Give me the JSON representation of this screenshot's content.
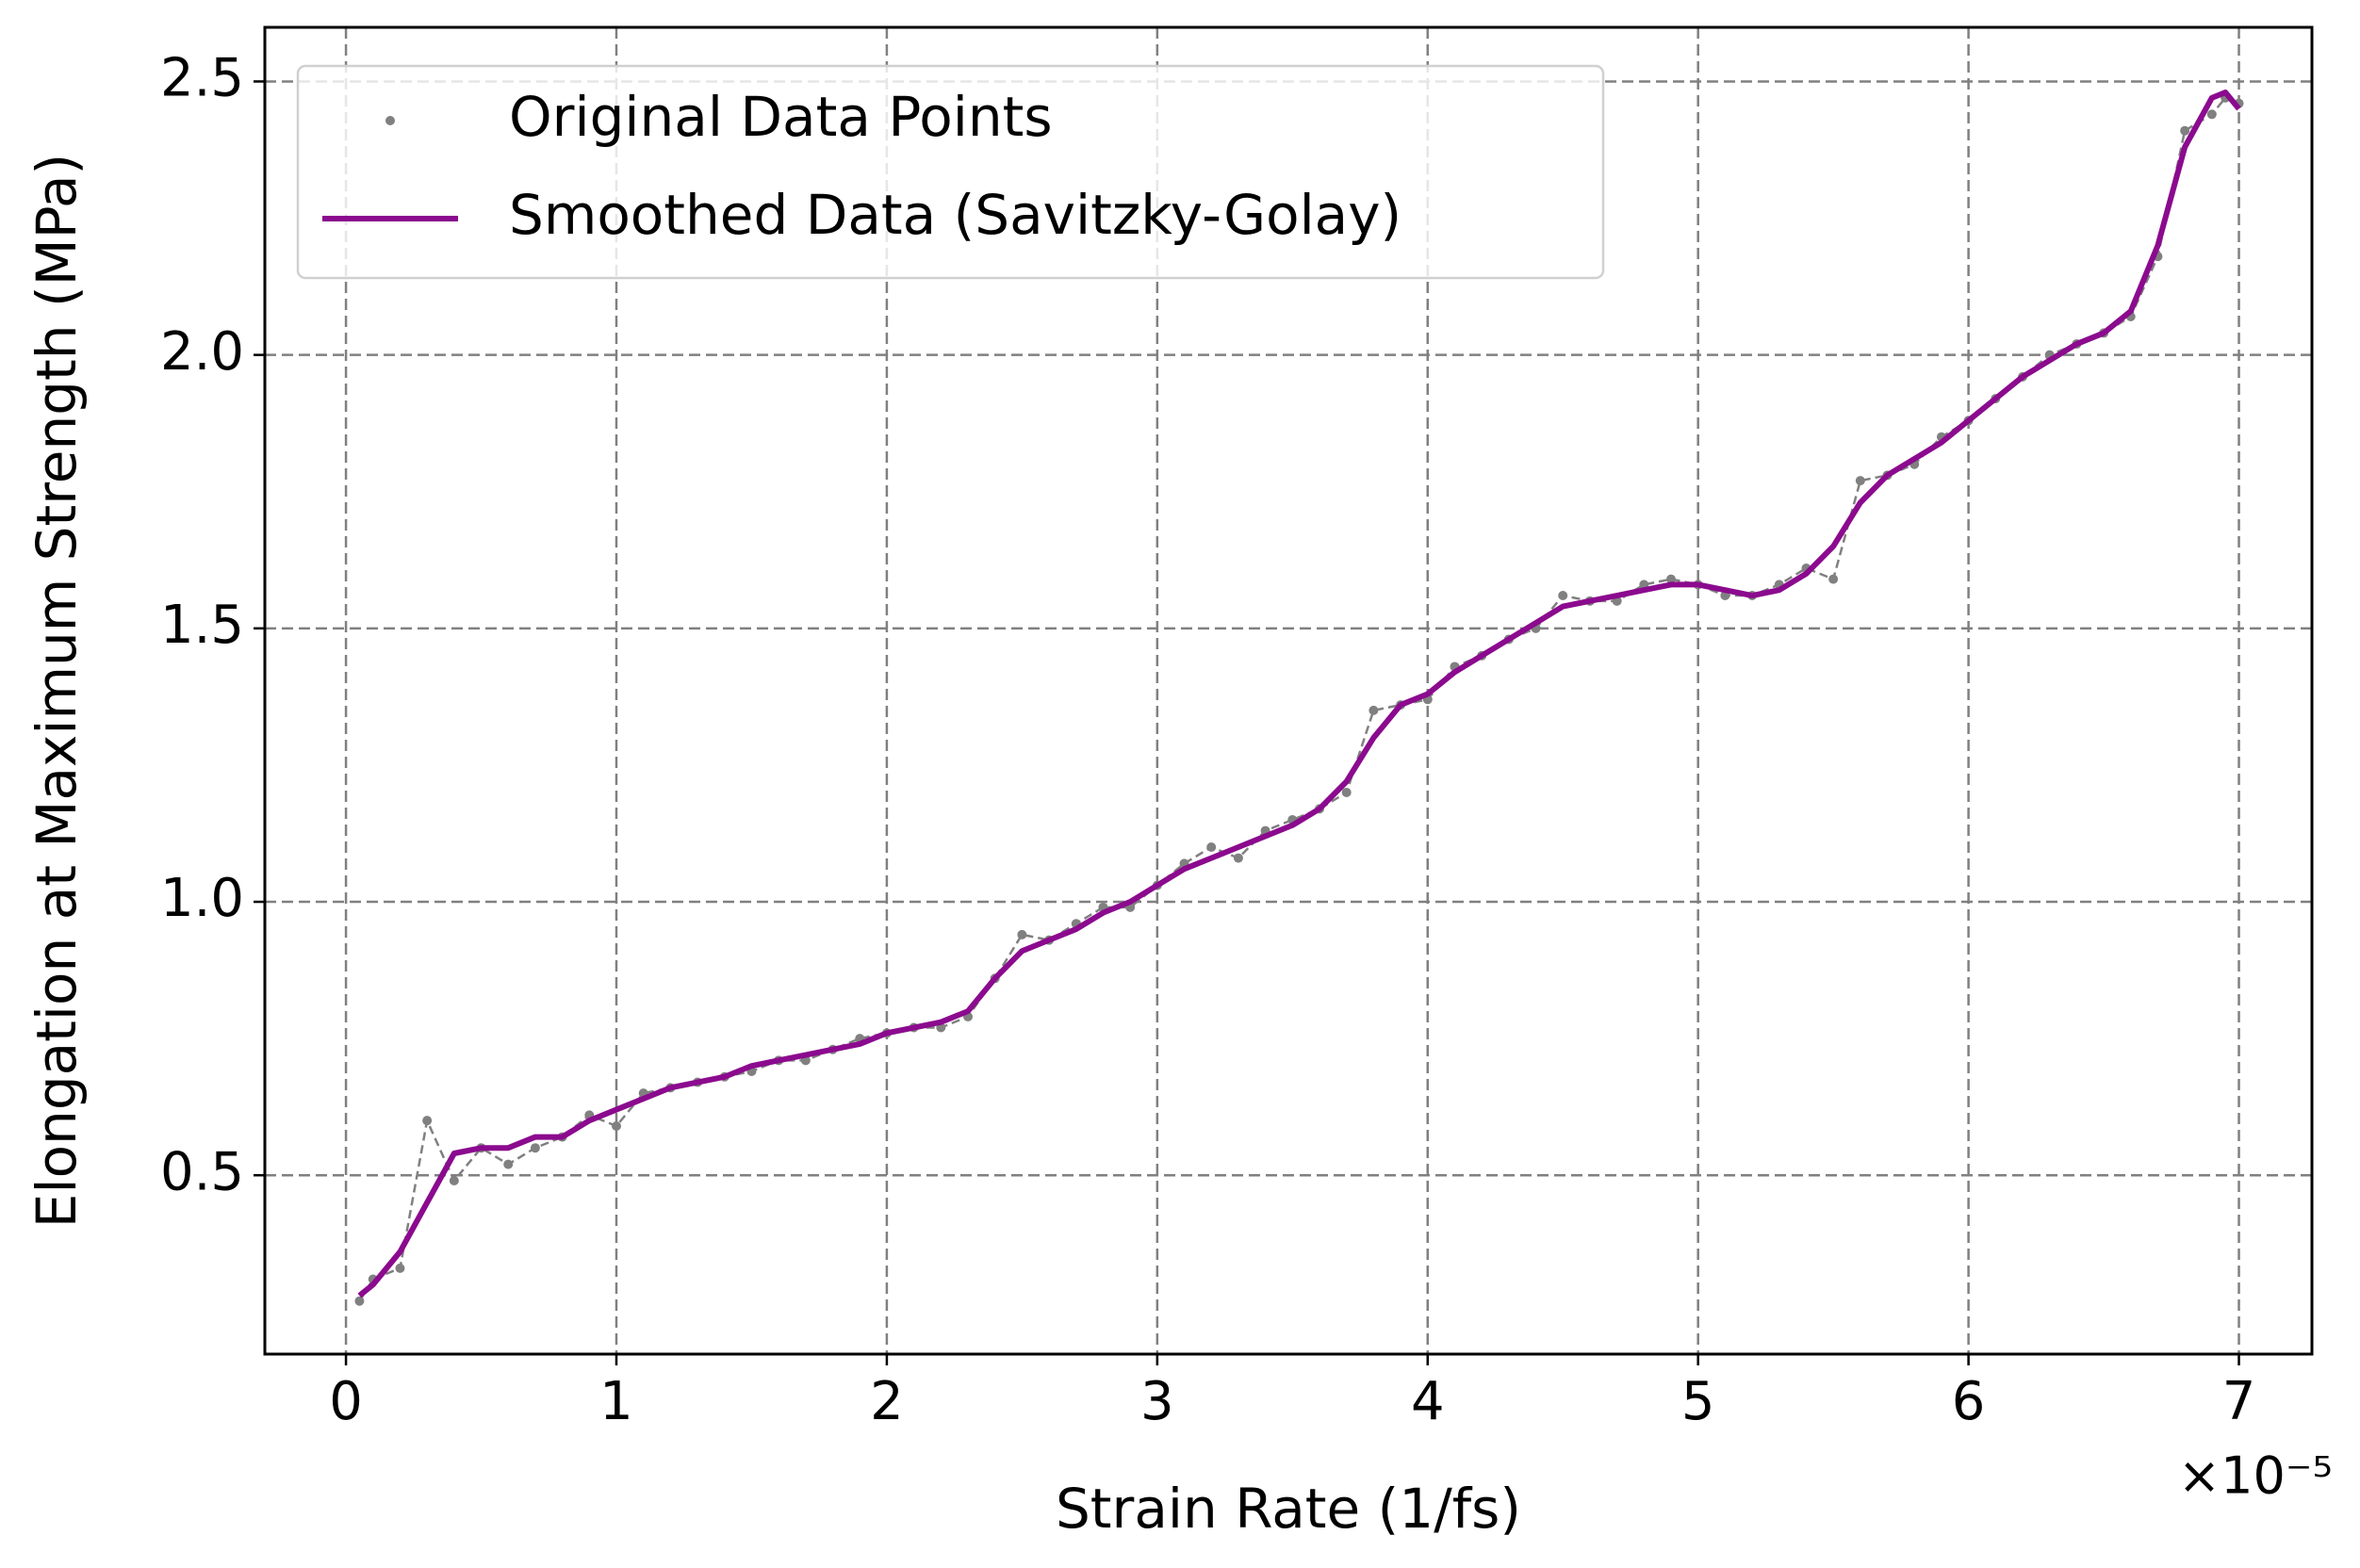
{
  "chart_data": {
    "type": "line",
    "x_label": "Strain Rate (1/fs)",
    "x_offset_label": "×10⁻⁵",
    "y_label": "Elongation at Maximum Strength (MPa)",
    "x": [
      0.05,
      0.1,
      0.2,
      0.3,
      0.4,
      0.5,
      0.6,
      0.7,
      0.8,
      0.9,
      1.0,
      1.1,
      1.2,
      1.3,
      1.4,
      1.5,
      1.6,
      1.7,
      1.8,
      1.9,
      2.0,
      2.1,
      2.2,
      2.3,
      2.4,
      2.5,
      2.6,
      2.7,
      2.8,
      2.9,
      3.0,
      3.1,
      3.2,
      3.3,
      3.4,
      3.5,
      3.6,
      3.7,
      3.8,
      3.9,
      4.0,
      4.1,
      4.2,
      4.3,
      4.4,
      4.5,
      4.6,
      4.7,
      4.8,
      4.9,
      5.0,
      5.1,
      5.2,
      5.3,
      5.4,
      5.5,
      5.6,
      5.7,
      5.8,
      5.9,
      6.0,
      6.1,
      6.2,
      6.3,
      6.4,
      6.5,
      6.6,
      6.7,
      6.8,
      6.9,
      6.95,
      7.0
    ],
    "series": [
      {
        "name": "Original Data Points",
        "color": "#808080",
        "linestyle": "dashed",
        "marker": "dot",
        "values": [
          0.27,
          0.31,
          0.33,
          0.6,
          0.49,
          0.55,
          0.52,
          0.55,
          0.57,
          0.61,
          0.59,
          0.65,
          0.66,
          0.67,
          0.68,
          0.69,
          0.71,
          0.71,
          0.73,
          0.75,
          0.76,
          0.77,
          0.77,
          0.79,
          0.86,
          0.94,
          0.93,
          0.96,
          0.99,
          0.99,
          1.03,
          1.07,
          1.1,
          1.08,
          1.13,
          1.15,
          1.17,
          1.2,
          1.35,
          1.36,
          1.37,
          1.43,
          1.45,
          1.48,
          1.5,
          1.56,
          1.55,
          1.55,
          1.58,
          1.59,
          1.58,
          1.56,
          1.56,
          1.58,
          1.61,
          1.59,
          1.77,
          1.78,
          1.8,
          1.85,
          1.88,
          1.92,
          1.96,
          2.0,
          2.02,
          2.04,
          2.07,
          2.18,
          2.41,
          2.44,
          2.47,
          2.46
        ]
      },
      {
        "name": "Smoothed Data (Savitzky-Golay)",
        "color": "#8b0a8e",
        "linestyle": "solid",
        "values": [
          0.28,
          0.3,
          0.36,
          0.45,
          0.54,
          0.55,
          0.55,
          0.57,
          0.57,
          0.6,
          0.62,
          0.64,
          0.66,
          0.67,
          0.68,
          0.7,
          0.71,
          0.72,
          0.73,
          0.74,
          0.76,
          0.77,
          0.78,
          0.8,
          0.86,
          0.91,
          0.93,
          0.95,
          0.98,
          1.0,
          1.03,
          1.06,
          1.08,
          1.1,
          1.12,
          1.14,
          1.17,
          1.22,
          1.3,
          1.36,
          1.38,
          1.42,
          1.45,
          1.48,
          1.51,
          1.54,
          1.55,
          1.56,
          1.57,
          1.58,
          1.58,
          1.57,
          1.56,
          1.57,
          1.6,
          1.65,
          1.73,
          1.78,
          1.81,
          1.84,
          1.88,
          1.92,
          1.96,
          1.99,
          2.02,
          2.04,
          2.08,
          2.2,
          2.38,
          2.47,
          2.48,
          2.45
        ]
      }
    ],
    "xlim": [
      -0.3,
      7.27
    ],
    "ylim": [
      0.173,
      2.599
    ],
    "xticks": [
      0,
      1,
      2,
      3,
      4,
      5,
      6,
      7
    ],
    "yticks": [
      0.5,
      {
        "value": 1,
        "label": "1.0"
      },
      1.5,
      {
        "value": 2,
        "label": "2.0"
      },
      2.5
    ],
    "grid": true,
    "legend": "upper left"
  }
}
